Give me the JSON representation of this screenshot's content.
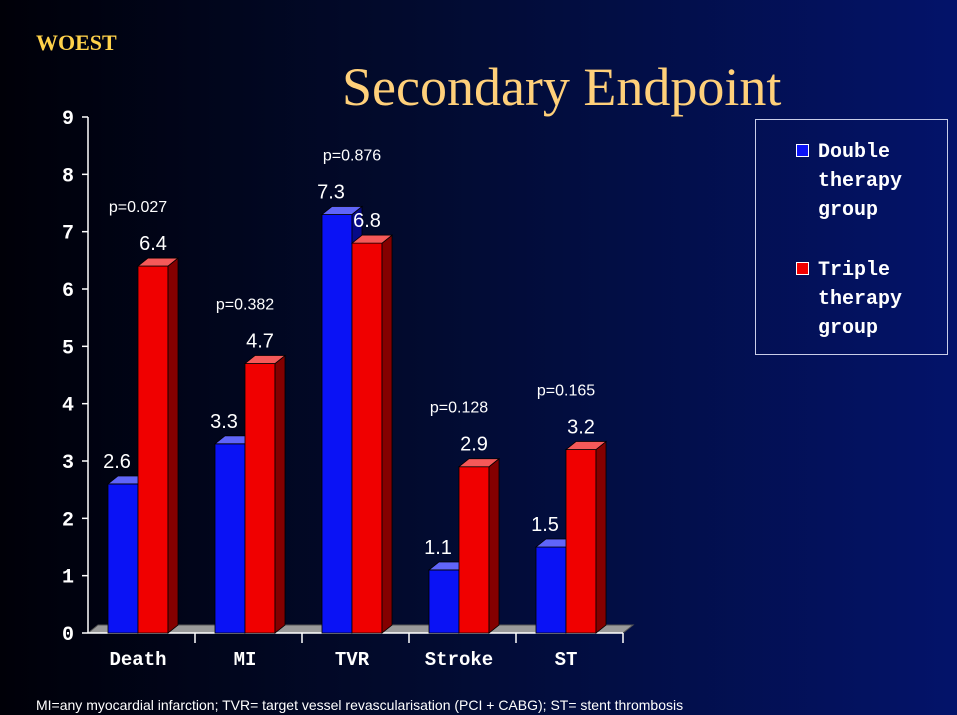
{
  "brand": "WOEST",
  "footnote": "MI=any myocardial infarction; TVR= target vessel revascularisation (PCI + CABG); ST= stent thrombosis",
  "colors": {
    "series1": "#0a12f5",
    "series2": "#f00000",
    "text": "#ffffff",
    "title": "#ffd07a",
    "brand": "#ffd24a"
  },
  "chart_data": {
    "type": "bar",
    "title": "Secondary Endpoint",
    "categories": [
      "Death",
      "MI",
      "TVR",
      "Stroke",
      "ST"
    ],
    "series": [
      {
        "name": "Double therapy group",
        "values": [
          2.6,
          3.3,
          7.3,
          1.1,
          1.5
        ]
      },
      {
        "name": "Triple therapy group",
        "values": [
          6.4,
          4.7,
          6.8,
          2.9,
          3.2
        ]
      }
    ],
    "p_values": [
      "p=0.027",
      "p=0.382",
      "p=0.876",
      "p=0.128",
      "p=0.165"
    ],
    "ylim": [
      0,
      9
    ],
    "yticks": [
      "0",
      "1",
      "2",
      "3",
      "4",
      "5",
      "6",
      "7",
      "8",
      "9"
    ],
    "xlabel": "",
    "ylabel": "",
    "grid": false,
    "legend_position": "right"
  }
}
